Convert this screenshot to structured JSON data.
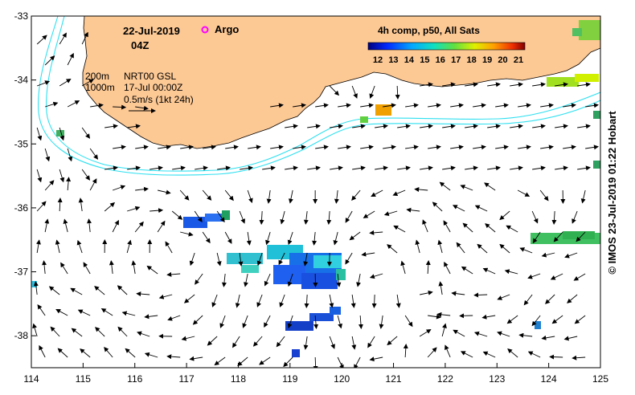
{
  "map": {
    "date": "22-Jul-2019",
    "time": "04Z",
    "argo_label": "Argo",
    "contours": {
      "c1": "200m",
      "c2": "1000m"
    },
    "current_source": "NRT00 GSL",
    "current_time": "17-Jul 00:00Z",
    "scale_label": "0.5m/s (1kt 24h)",
    "credit": "© IMOS 23-Jul-2019 01:22 Hobart",
    "colorbar": {
      "title": "4h comp, p50, All Sats",
      "ticks": [
        "12",
        "13",
        "14",
        "15",
        "16",
        "17",
        "18",
        "19",
        "20",
        "21"
      ]
    },
    "x_ticks": [
      "114",
      "115",
      "116",
      "117",
      "118",
      "119",
      "120",
      "121",
      "122",
      "123",
      "124",
      "125"
    ],
    "y_ticks": [
      "-33",
      "-34",
      "-35",
      "-36",
      "-37",
      "-38"
    ],
    "x_range": [
      114,
      125
    ],
    "y_range": [
      -38.5,
      -33
    ],
    "colors": {
      "land": "#fcc894",
      "contour": "#2ee0f0",
      "argo": "#ff00ff"
    }
  }
}
